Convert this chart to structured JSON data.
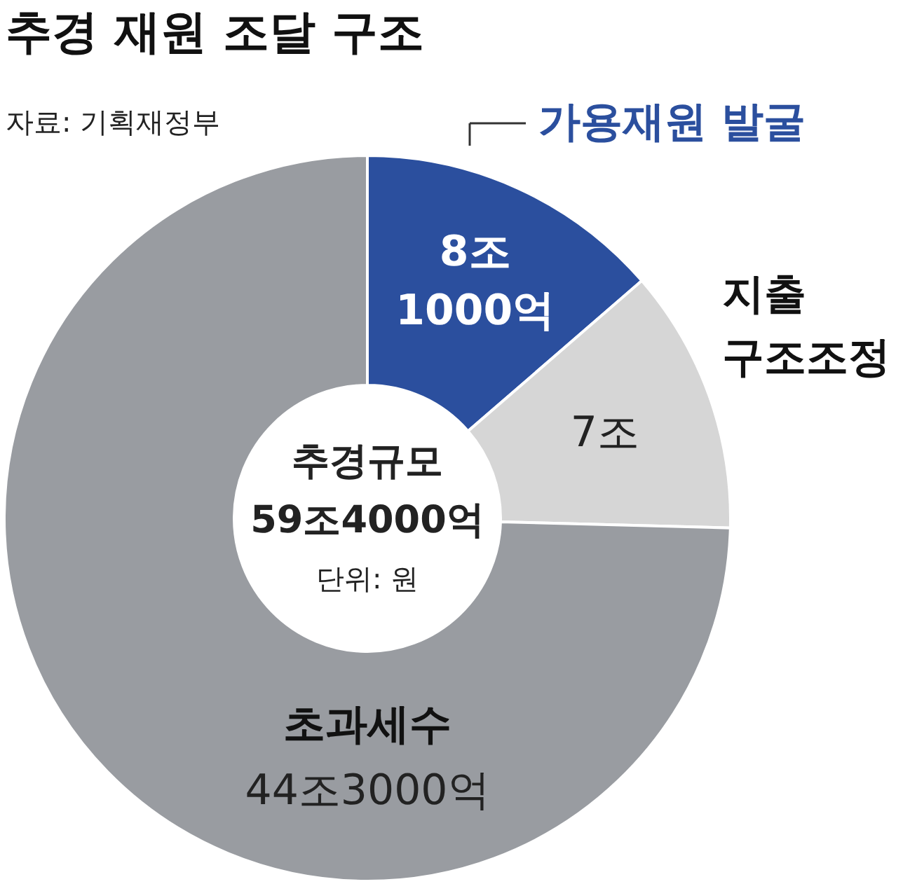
{
  "chart_data": {
    "type": "donut",
    "title": "추경 재원 조달 구조",
    "subtitle": "자료: 기획재정부",
    "categories": [
      "가용재원 발굴",
      "지출 구조조정",
      "초과세수"
    ],
    "values": [
      8.1,
      7,
      44.3
    ],
    "colors": [
      "#2b4f9e",
      "#d6d6d6",
      "#999ca1"
    ],
    "value_labels": [
      "8조 1000억",
      "7조",
      "44조3000억"
    ],
    "annotations": [
      "추경규모",
      "59조4000억",
      "단위: 원"
    ]
  }
}
